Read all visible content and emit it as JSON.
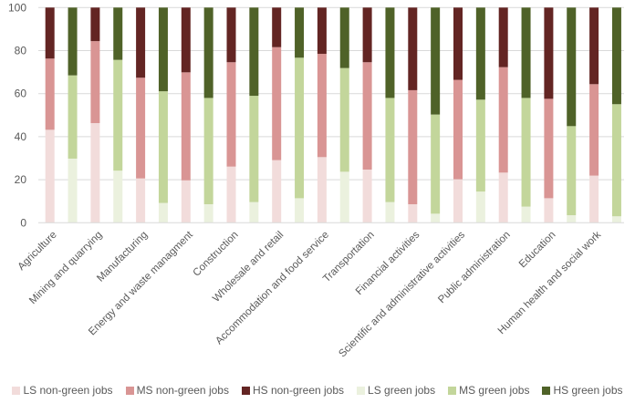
{
  "chart_data": {
    "type": "bar",
    "stacked": true,
    "title": "",
    "xlabel": "",
    "ylabel": "",
    "ylim": [
      0,
      100
    ],
    "yticks": [
      0,
      20,
      40,
      60,
      80,
      100
    ],
    "grid": true,
    "legend_position": "bottom",
    "categories": [
      "Agriculture",
      "Mining and quarrying",
      "Manufacturing",
      "Energy and waste managment",
      "Construction",
      "Wholesale and retail",
      "Accommodation and food service",
      "Transportation",
      "Financial activities",
      "Scientific and administrative activities",
      "Public administration",
      "Education",
      "Human health and social work"
    ],
    "bar_groups": [
      "non-green",
      "green"
    ],
    "series": [
      {
        "name": "LS non-green jobs",
        "group": "non-green",
        "color": "#f2dcdb",
        "values": [
          43.2,
          46.3,
          20.6,
          19.7,
          26.1,
          29.1,
          30.5,
          24.7,
          8.6,
          20.2,
          23.3,
          11.4,
          21.9
        ]
      },
      {
        "name": "MS non-green jobs",
        "group": "non-green",
        "color": "#d99594",
        "values": [
          33.1,
          38.1,
          46.8,
          50.2,
          48.5,
          52.5,
          48.0,
          49.9,
          53.0,
          46.2,
          49.0,
          46.2,
          42.5
        ]
      },
      {
        "name": "HS non-green jobs",
        "group": "non-green",
        "color": "#632523",
        "values": [
          23.7,
          15.6,
          32.6,
          30.1,
          25.4,
          18.4,
          21.5,
          25.4,
          38.4,
          33.6,
          27.7,
          42.4,
          35.6
        ]
      },
      {
        "name": "LS green jobs",
        "group": "green",
        "color": "#ebf1de",
        "values": [
          29.8,
          24.2,
          9.2,
          8.6,
          9.6,
          11.4,
          23.7,
          9.6,
          4.2,
          14.5,
          7.5,
          3.5,
          3.0
        ]
      },
      {
        "name": "MS green jobs",
        "group": "green",
        "color": "#c3d69b",
        "values": [
          38.7,
          51.5,
          51.9,
          49.4,
          49.4,
          65.3,
          48.2,
          48.4,
          46.1,
          42.7,
          50.5,
          41.4,
          52.1
        ]
      },
      {
        "name": "HS green jobs",
        "group": "green",
        "color": "#4f6228",
        "values": [
          31.5,
          24.3,
          38.9,
          42.0,
          41.0,
          23.3,
          28.1,
          42.0,
          49.7,
          42.8,
          42.0,
          55.1,
          44.9
        ]
      }
    ]
  }
}
